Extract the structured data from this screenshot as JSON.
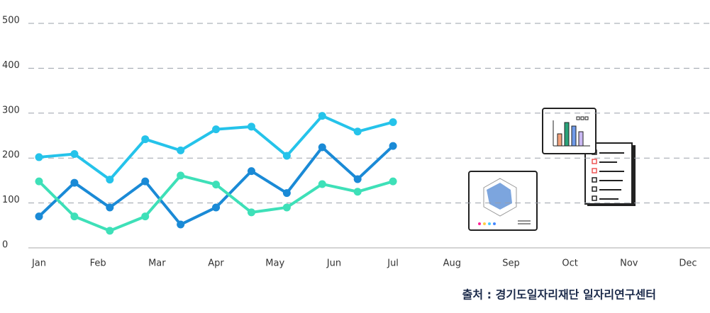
{
  "chart_data": {
    "type": "line",
    "x": [
      0,
      0.6,
      1.2,
      1.8,
      2.4,
      3.0,
      3.6,
      4.2,
      4.8,
      5.4,
      6.0
    ],
    "series": [
      {
        "color": "#25c3ea",
        "values": [
          202,
          209,
          152,
          242,
          217,
          264,
          270,
          205,
          294,
          259,
          280
        ]
      },
      {
        "color": "#1a8ad6",
        "values": [
          70,
          145,
          90,
          148,
          52,
          90,
          171,
          122,
          224,
          153,
          227
        ]
      },
      {
        "color": "#3ee0b8",
        "values": [
          148,
          70,
          38,
          70,
          161,
          141,
          79,
          90,
          142,
          125,
          148
        ]
      }
    ],
    "xlim": [
      0,
      11
    ],
    "xticks": [
      {
        "value": 0,
        "label": "Jan"
      },
      {
        "value": 1,
        "label": "Feb"
      },
      {
        "value": 2,
        "label": "Mar"
      },
      {
        "value": 3,
        "label": "Apr"
      },
      {
        "value": 4,
        "label": "May"
      },
      {
        "value": 5,
        "label": "Jun"
      },
      {
        "value": 6,
        "label": "Jul"
      },
      {
        "value": 7,
        "label": "Aug"
      },
      {
        "value": 8,
        "label": "Sep"
      },
      {
        "value": 9,
        "label": "Oct"
      },
      {
        "value": 10,
        "label": "Nov"
      },
      {
        "value": 11,
        "label": "Dec"
      }
    ],
    "ylim": [
      0,
      500
    ],
    "yticks": [
      0,
      100,
      200,
      300,
      400,
      500
    ],
    "grid": true,
    "source": "출처 : 경기도일자리재단 일자리연구센터"
  }
}
